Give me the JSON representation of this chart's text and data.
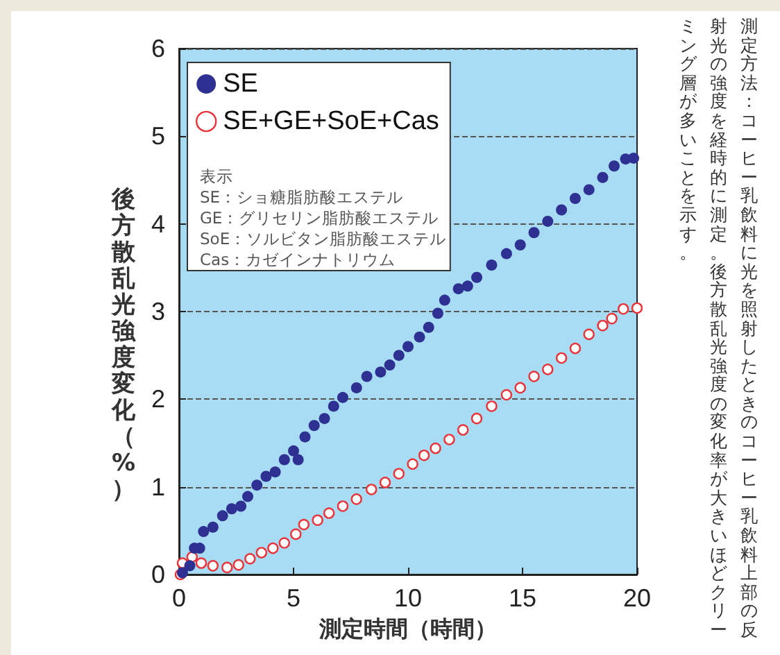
{
  "chart_data": {
    "type": "scatter",
    "xlabel": "測定時間（時間）",
    "ylabel": "後方散乱光強度変化（%）",
    "xlim": [
      0,
      20
    ],
    "xticks": [
      0,
      5,
      10,
      15,
      20
    ],
    "ylim": [
      0,
      6
    ],
    "yticks": [
      0,
      1,
      2,
      3,
      4,
      5,
      6
    ],
    "grid": "y",
    "legend": "top left",
    "marker": "circle",
    "series": [
      {
        "name": "SE",
        "color": "#2e3192",
        "x": [
          0.15,
          0.47,
          0.67,
          0.9,
          1.07,
          1.48,
          1.9,
          2.3,
          2.7,
          3.0,
          3.4,
          3.8,
          4.2,
          4.6,
          5.0,
          5.2,
          5.5,
          5.9,
          6.35,
          6.75,
          7.15,
          7.75,
          8.2,
          8.8,
          9.2,
          9.6,
          10.0,
          10.5,
          10.9,
          11.3,
          11.6,
          12.2,
          12.6,
          13.0,
          13.65,
          14.3,
          14.9,
          15.5,
          16.1,
          16.7,
          17.3,
          17.9,
          18.5,
          19.0,
          19.5,
          19.85
        ],
        "values": [
          0.02,
          0.1,
          0.3,
          0.3,
          0.49,
          0.54,
          0.67,
          0.75,
          0.78,
          0.89,
          1.02,
          1.12,
          1.17,
          1.31,
          1.41,
          1.31,
          1.57,
          1.7,
          1.78,
          1.92,
          2.02,
          2.13,
          2.26,
          2.31,
          2.39,
          2.5,
          2.6,
          2.71,
          2.82,
          2.98,
          3.13,
          3.26,
          3.29,
          3.39,
          3.53,
          3.66,
          3.76,
          3.9,
          4.03,
          4.16,
          4.29,
          4.39,
          4.53,
          4.66,
          4.74,
          4.75
        ]
      },
      {
        "name": "SE+GE+SoE+Cas",
        "color": "#e8343a",
        "x": [
          0.06,
          0.15,
          0.57,
          0.97,
          1.48,
          2.1,
          2.6,
          3.1,
          3.6,
          4.1,
          4.6,
          5.1,
          5.45,
          6.05,
          6.55,
          7.15,
          7.75,
          8.4,
          9.0,
          9.6,
          10.2,
          10.7,
          11.2,
          11.8,
          12.4,
          13.0,
          13.65,
          14.3,
          14.9,
          15.5,
          16.1,
          16.7,
          17.3,
          17.9,
          18.5,
          18.9,
          19.4,
          20.0
        ],
        "values": [
          0,
          0.13,
          0.2,
          0.13,
          0.1,
          0.08,
          0.11,
          0.18,
          0.25,
          0.3,
          0.36,
          0.46,
          0.57,
          0.62,
          0.7,
          0.78,
          0.86,
          0.97,
          1.05,
          1.15,
          1.26,
          1.36,
          1.44,
          1.54,
          1.65,
          1.78,
          1.92,
          2.05,
          2.13,
          2.26,
          2.34,
          2.47,
          2.58,
          2.74,
          2.84,
          2.92,
          3.03,
          3.04
        ]
      }
    ],
    "annotations": [
      "表示",
      "SE：ショ糖脂肪酸エステル",
      "GE：グリセリン脂肪酸エステル",
      "SoE：ソルビタン脂肪酸エステル",
      "Cas：カゼインナトリウム",
      "測定方法：コーヒー乳飲料に光を照射したときのコーヒー乳飲料上部の反射光の強度を経時的に測定。後方散乱光強度の変化率が大きいほどクリーミング層が多いことを示す。"
    ]
  }
}
